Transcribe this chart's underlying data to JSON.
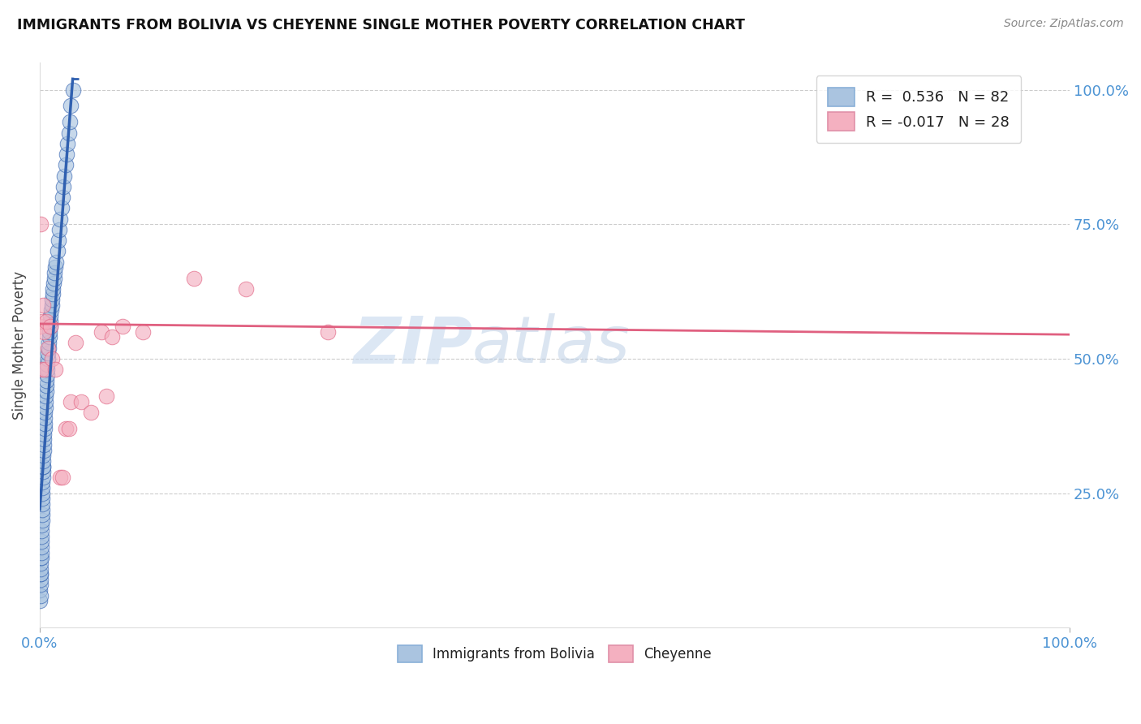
{
  "title": "IMMIGRANTS FROM BOLIVIA VS CHEYENNE SINGLE MOTHER POVERTY CORRELATION CHART",
  "source": "Source: ZipAtlas.com",
  "ylabel": "Single Mother Poverty",
  "xlim": [
    0.0,
    1.0
  ],
  "ylim": [
    0.0,
    1.05
  ],
  "color_blue": "#aac4e0",
  "color_pink": "#f4b0c0",
  "trendline_blue": "#3060b0",
  "trendline_pink": "#e06080",
  "watermark_zip": "ZIP",
  "watermark_atlas": "atlas",
  "bolivia_x": [
    0.0002,
    0.0004,
    0.0005,
    0.0006,
    0.0007,
    0.0008,
    0.0009,
    0.001,
    0.0011,
    0.0012,
    0.0013,
    0.0014,
    0.0015,
    0.0016,
    0.0017,
    0.0018,
    0.0019,
    0.002,
    0.0021,
    0.0022,
    0.0023,
    0.0024,
    0.0025,
    0.0026,
    0.0027,
    0.0028,
    0.003,
    0.0031,
    0.0032,
    0.0033,
    0.0035,
    0.0036,
    0.0038,
    0.004,
    0.0042,
    0.0044,
    0.0046,
    0.0048,
    0.005,
    0.0052,
    0.0055,
    0.0058,
    0.006,
    0.0063,
    0.0065,
    0.007,
    0.0072,
    0.0075,
    0.008,
    0.0082,
    0.0085,
    0.009,
    0.0092,
    0.0095,
    0.01,
    0.0102,
    0.0105,
    0.011,
    0.0115,
    0.012,
    0.0125,
    0.013,
    0.0135,
    0.014,
    0.0145,
    0.015,
    0.016,
    0.017,
    0.018,
    0.019,
    0.02,
    0.021,
    0.022,
    0.023,
    0.024,
    0.025,
    0.026,
    0.027,
    0.028,
    0.029,
    0.03,
    0.032
  ],
  "bolivia_y": [
    0.05,
    0.07,
    0.06,
    0.08,
    0.09,
    0.1,
    0.1,
    0.11,
    0.12,
    0.13,
    0.13,
    0.14,
    0.15,
    0.16,
    0.17,
    0.18,
    0.19,
    0.2,
    0.21,
    0.22,
    0.23,
    0.24,
    0.25,
    0.26,
    0.27,
    0.28,
    0.29,
    0.3,
    0.3,
    0.31,
    0.32,
    0.33,
    0.34,
    0.35,
    0.36,
    0.37,
    0.38,
    0.39,
    0.4,
    0.41,
    0.42,
    0.43,
    0.44,
    0.45,
    0.46,
    0.47,
    0.48,
    0.49,
    0.5,
    0.51,
    0.52,
    0.53,
    0.54,
    0.55,
    0.56,
    0.57,
    0.58,
    0.59,
    0.6,
    0.61,
    0.62,
    0.63,
    0.64,
    0.65,
    0.66,
    0.67,
    0.68,
    0.7,
    0.72,
    0.74,
    0.76,
    0.78,
    0.8,
    0.82,
    0.84,
    0.86,
    0.88,
    0.9,
    0.92,
    0.94,
    0.97,
    1.0
  ],
  "cheyenne_x": [
    0.0008,
    0.001,
    0.0015,
    0.002,
    0.003,
    0.004,
    0.005,
    0.006,
    0.008,
    0.01,
    0.012,
    0.015,
    0.02,
    0.022,
    0.025,
    0.028,
    0.03,
    0.035,
    0.04,
    0.05,
    0.06,
    0.065,
    0.07,
    0.08,
    0.1,
    0.15,
    0.2,
    0.28
  ],
  "cheyenne_y": [
    0.56,
    0.75,
    0.48,
    0.57,
    0.6,
    0.55,
    0.48,
    0.57,
    0.52,
    0.56,
    0.5,
    0.48,
    0.28,
    0.28,
    0.37,
    0.37,
    0.42,
    0.53,
    0.42,
    0.4,
    0.55,
    0.43,
    0.54,
    0.56,
    0.55,
    0.65,
    0.63,
    0.55
  ],
  "ytick_positions": [
    0.25,
    0.5,
    0.75,
    1.0
  ],
  "ytick_labels": [
    "25.0%",
    "50.0%",
    "75.0%",
    "100.0%"
  ],
  "xtick_positions": [
    0.0,
    1.0
  ],
  "xtick_labels": [
    "0.0%",
    "100.0%"
  ]
}
